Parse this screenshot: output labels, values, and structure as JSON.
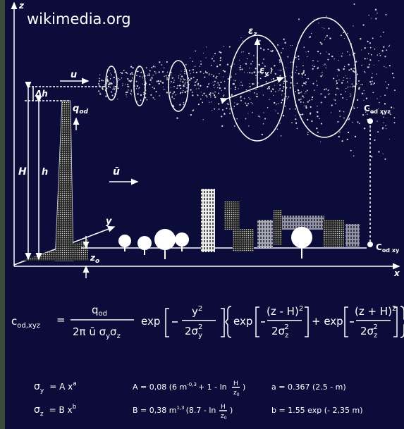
{
  "watermark": "wikimedia.org",
  "axes": {
    "z": "z",
    "x": "x",
    "y": "y"
  },
  "labels": {
    "u": "u",
    "dh": "Δh",
    "q": "q",
    "q_sub": "od",
    "H": "H",
    "h": "h",
    "ubar": "ū",
    "z0": "z",
    "z0_sub": "o",
    "ez": "ε",
    "ez_sub": "z",
    "ey": "ε",
    "ey_sub": "y",
    "c_xyz": "C",
    "c_xyz_sub": "od xyz",
    "c_xy": "C",
    "c_xy_sub": "od xy"
  },
  "formula": {
    "c": "c",
    "c_sub": "od,xyz",
    "eq": "=",
    "num": "q",
    "num_sub": "od",
    "den": "2π ū σ",
    "den_sub1": "y",
    "den_s2": "σ",
    "den_sub2": "z",
    "exp1": "exp",
    "f1_num": "y",
    "f1_num_sup": "2",
    "f1_den": "2σ",
    "f1_den_sub": "y",
    "f1_den_sup": "2",
    "exp2": "exp",
    "f2_num": "(z - H)",
    "f2_num_sup": "2",
    "f2_den": "2σ",
    "f2_den_sub": "z",
    "f2_den_sup": "2",
    "exp3": "+ exp",
    "f3_num": "(z + H)",
    "f3_num_sup": "2",
    "f3_den": "2σ",
    "f3_den_sub": "z",
    "f3_den_sup": "2"
  },
  "params": {
    "sy": [
      "σ",
      "y",
      "=  A  x",
      "a"
    ],
    "A": [
      "A  =  0,08 (6 m",
      "-0,3",
      "+ 1 - ln",
      "H",
      "z",
      "0",
      ")"
    ],
    "a": [
      "a  =  0.367 (2.5 - m)"
    ],
    "sz": [
      "σ",
      "z",
      "=  B  x",
      "b"
    ],
    "B": [
      "B  =  0,38 m",
      "1,3",
      "(8.7 - ln",
      "H",
      "z",
      "0",
      ")"
    ],
    "b": [
      "b  =  1.55 exp (- 2,35 m)"
    ]
  }
}
